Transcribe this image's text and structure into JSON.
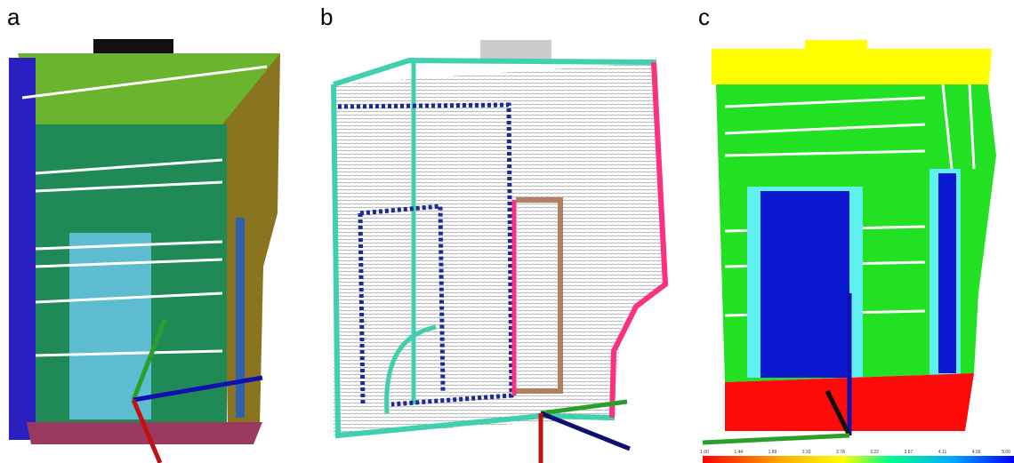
{
  "panels": [
    {
      "label": "a"
    },
    {
      "label": "b"
    },
    {
      "label": "c",
      "colorbar": {
        "ticks": [
          "1.00",
          "1.44",
          "1.89",
          "2.33",
          "2.78",
          "3.22",
          "3.67",
          "4.11",
          "4.56",
          "5.00"
        ]
      }
    }
  ]
}
